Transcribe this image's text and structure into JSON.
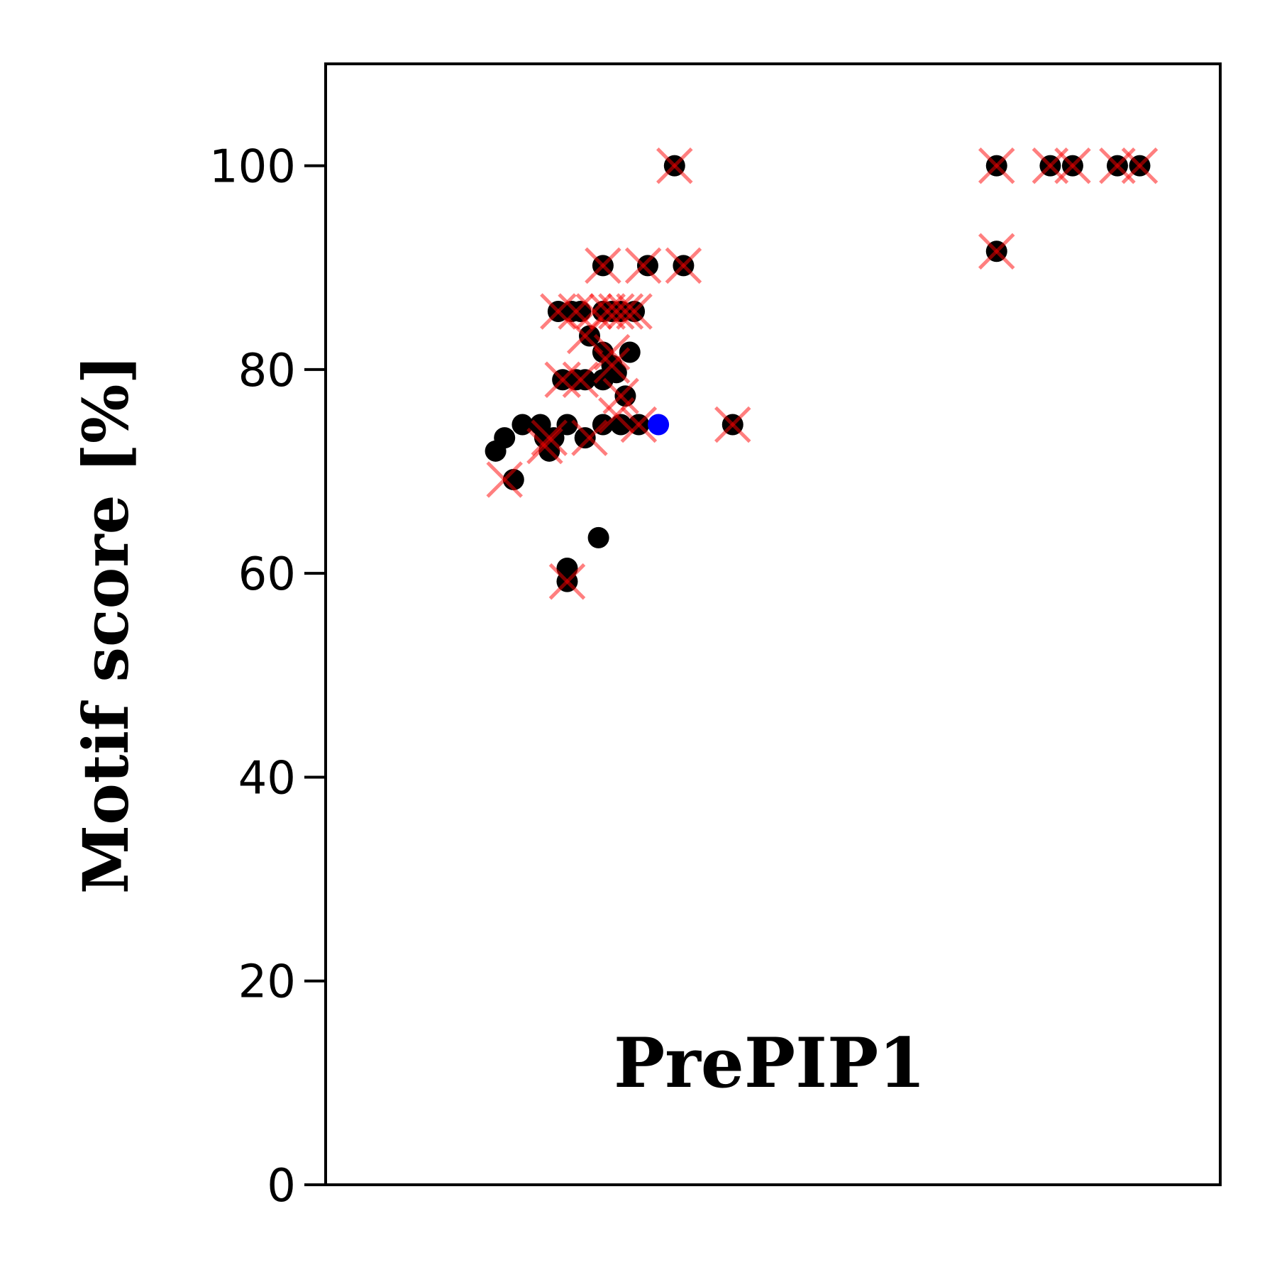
{
  "chart_data": {
    "type": "scatter",
    "title": "",
    "xlabel": "",
    "ylabel": "Motif score [%]",
    "annotation": "PrePIP1",
    "ylim": [
      0,
      110
    ],
    "yticks": [
      0,
      20,
      40,
      60,
      80,
      100
    ],
    "x_axis_visible": false,
    "grid": false,
    "legend": "none",
    "colors": {
      "black_points": "#000000",
      "cross_markers": "#ff0000",
      "blue_point": "#0000ff"
    },
    "series": [
      {
        "marker": "circle",
        "color": "#000000",
        "points": [
          [
            0.19,
            72
          ],
          [
            0.2,
            73.3
          ],
          [
            0.21,
            69.2
          ],
          [
            0.22,
            74.6
          ],
          [
            0.24,
            74.6
          ],
          [
            0.245,
            73.3
          ],
          [
            0.25,
            72
          ],
          [
            0.255,
            73.3
          ],
          [
            0.26,
            85.7
          ],
          [
            0.265,
            79
          ],
          [
            0.27,
            74.6
          ],
          [
            0.27,
            60.5
          ],
          [
            0.27,
            59.2
          ],
          [
            0.275,
            85.7
          ],
          [
            0.28,
            79
          ],
          [
            0.285,
            85.7
          ],
          [
            0.29,
            79
          ],
          [
            0.29,
            73.3
          ],
          [
            0.295,
            83.3
          ],
          [
            0.305,
            63.5
          ],
          [
            0.31,
            90.2
          ],
          [
            0.31,
            85.7
          ],
          [
            0.31,
            81.7
          ],
          [
            0.31,
            79
          ],
          [
            0.31,
            74.6
          ],
          [
            0.32,
            85.7
          ],
          [
            0.32,
            80.4
          ],
          [
            0.325,
            79.7
          ],
          [
            0.33,
            74.6
          ],
          [
            0.33,
            85.7
          ],
          [
            0.335,
            77.4
          ],
          [
            0.34,
            81.7
          ],
          [
            0.345,
            85.7
          ],
          [
            0.35,
            74.6
          ],
          [
            0.36,
            90.2
          ],
          [
            0.39,
            100
          ],
          [
            0.4,
            90.2
          ],
          [
            0.455,
            74.6
          ],
          [
            0.75,
            100
          ],
          [
            0.75,
            91.6
          ],
          [
            0.81,
            100
          ],
          [
            0.835,
            100
          ],
          [
            0.885,
            100
          ],
          [
            0.91,
            100
          ]
        ]
      },
      {
        "marker": "x",
        "color": "#ff0000",
        "points": [
          [
            0.2,
            69.2
          ],
          [
            0.245,
            72.5
          ],
          [
            0.25,
            73.3
          ],
          [
            0.26,
            85.7
          ],
          [
            0.265,
            79
          ],
          [
            0.27,
            59.2
          ],
          [
            0.28,
            85.7
          ],
          [
            0.285,
            79
          ],
          [
            0.29,
            83.3
          ],
          [
            0.295,
            73.3
          ],
          [
            0.3,
            85.7
          ],
          [
            0.31,
            90.2
          ],
          [
            0.315,
            85.7
          ],
          [
            0.32,
            81.7
          ],
          [
            0.32,
            80.4
          ],
          [
            0.325,
            85.7
          ],
          [
            0.325,
            75.5
          ],
          [
            0.33,
            77.4
          ],
          [
            0.335,
            85.7
          ],
          [
            0.345,
            85.7
          ],
          [
            0.35,
            74.6
          ],
          [
            0.355,
            90.2
          ],
          [
            0.39,
            100
          ],
          [
            0.4,
            90.2
          ],
          [
            0.455,
            74.6
          ],
          [
            0.75,
            100
          ],
          [
            0.75,
            91.6
          ],
          [
            0.81,
            100
          ],
          [
            0.835,
            100
          ],
          [
            0.885,
            100
          ],
          [
            0.91,
            100
          ]
        ]
      },
      {
        "marker": "circle",
        "color": "#0000ff",
        "points": [
          [
            0.372,
            74.6
          ]
        ]
      }
    ]
  }
}
